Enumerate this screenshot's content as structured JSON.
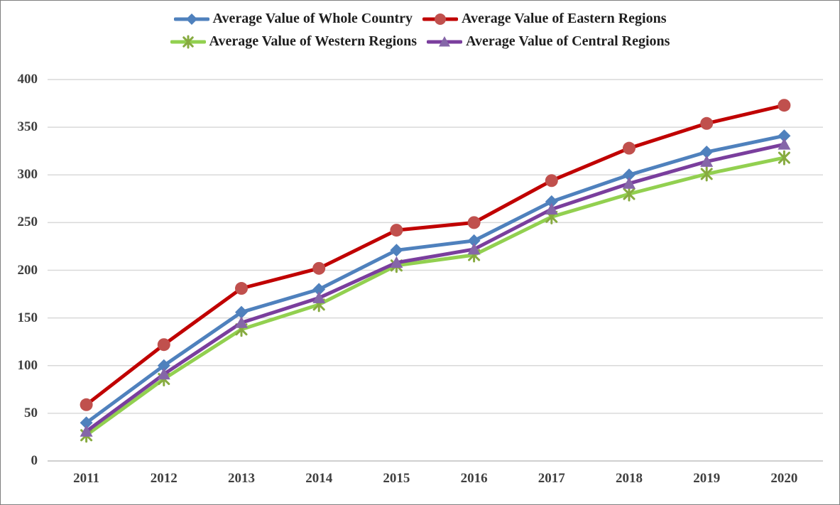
{
  "chart_data": {
    "type": "line",
    "title": "",
    "xlabel": "",
    "ylabel": "",
    "categories": [
      "2011",
      "2012",
      "2013",
      "2014",
      "2015",
      "2016",
      "2017",
      "2018",
      "2019",
      "2020"
    ],
    "series": [
      {
        "name": "Average Value of Whole Country",
        "marker": "diamond",
        "line_color": "#4F81BD",
        "marker_color": "#4F81BD",
        "values": [
          40,
          100,
          156,
          180,
          221,
          231,
          272,
          300,
          324,
          341
        ]
      },
      {
        "name": "Average Value of Eastern Regions",
        "marker": "circle",
        "line_color": "#C00000",
        "marker_color": "#C0504D",
        "values": [
          59,
          122,
          181,
          202,
          242,
          250,
          294,
          328,
          354,
          373
        ]
      },
      {
        "name": "Average Value of Western Regions",
        "marker": "asterisk",
        "line_color": "#92D050",
        "marker_color": "#87AB40",
        "values": [
          27,
          86,
          138,
          164,
          205,
          216,
          256,
          280,
          301,
          318
        ]
      },
      {
        "name": "Average Value of Central Regions",
        "marker": "triangle",
        "line_color": "#7A3E9D",
        "marker_color": "#8566A8",
        "values": [
          31,
          91,
          145,
          171,
          208,
          222,
          264,
          291,
          314,
          332
        ]
      }
    ],
    "ylim": [
      0,
      400
    ],
    "yticks": [
      "0",
      "50",
      "100",
      "150",
      "200",
      "250",
      "300",
      "350",
      "400"
    ],
    "grid": true,
    "legend_position": "top"
  },
  "colors": {
    "grid_line": "#D9D9D9",
    "zero_axis_line": "#BFBFBF",
    "tick_text": "#404040",
    "legend_text": "#1F1F1F",
    "frame_border": "#7F7F7F",
    "background": "#FFFFFF"
  }
}
